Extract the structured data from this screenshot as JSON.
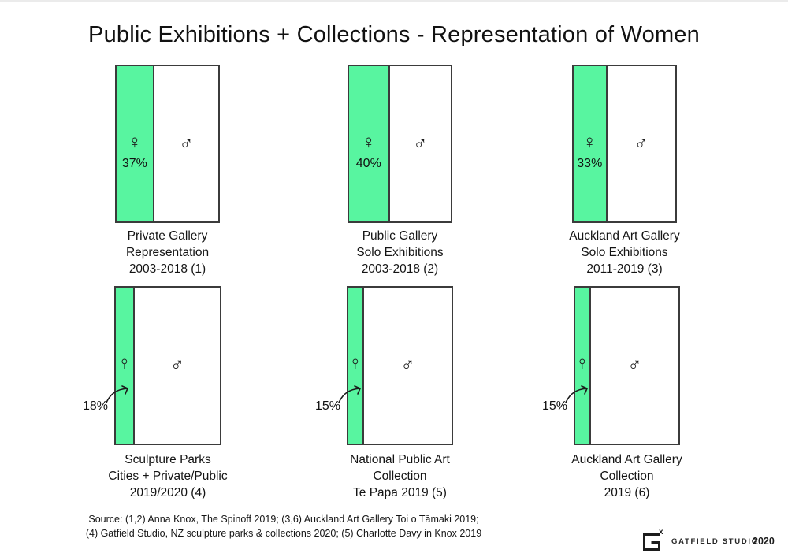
{
  "title": "Public Exhibitions + Collections - Representation of Women",
  "symbols": {
    "female": "♀",
    "male": "♂"
  },
  "panels": [
    {
      "pct_label": "37%",
      "female_pct": 37,
      "caption": [
        "Private Gallery",
        "Representation",
        "2003-2018 (1)"
      ]
    },
    {
      "pct_label": "40%",
      "female_pct": 40,
      "caption": [
        "Public Gallery",
        "Solo Exhibitions",
        "2003-2018 (2)"
      ]
    },
    {
      "pct_label": "33%",
      "female_pct": 33,
      "caption": [
        "Auckland Art Gallery",
        "Solo Exhibitions",
        "2011-2019 (3)"
      ]
    },
    {
      "pct_label": "18%",
      "female_pct": 18,
      "caption": [
        "Sculpture Parks",
        "Cities + Private/Public",
        "2019/2020 (4)"
      ]
    },
    {
      "pct_label": "15%",
      "female_pct": 15,
      "caption": [
        "National Public Art",
        "Collection",
        "Te Papa 2019 (5)"
      ]
    },
    {
      "pct_label": "15%",
      "female_pct": 15,
      "caption": [
        "Auckland Art Gallery",
        "Collection",
        "2019 (6)"
      ]
    }
  ],
  "footer": {
    "source_line1": "Source: (1,2) Anna Knox, The Spinoff 2019; (3,6) Auckland Art Gallery Toi o Tāmaki 2019;",
    "source_line2": "(4) Gatfield Studio, NZ sculpture parks & collections 2020; (5) Charlotte Davy in Knox 2019"
  },
  "logo": {
    "glyph_superscript": "x",
    "studio": "GATFIELD STUDIO",
    "year": "2020"
  },
  "colors": {
    "female_fill": "#58f5a0",
    "box_border": "#3b3b3b",
    "text": "#141414"
  },
  "chart_data": {
    "type": "bar",
    "title": "Public Exhibitions + Collections - Representation of Women",
    "categories": [
      "Private Gallery Representation 2003-2018 (1)",
      "Public Gallery Solo Exhibitions 2003-2018 (2)",
      "Auckland Art Gallery Solo Exhibitions 2011-2019 (3)",
      "Sculpture Parks Cities + Private/Public 2019/2020 (4)",
      "National Public Art Collection Te Papa 2019 (5)",
      "Auckland Art Gallery Collection 2019 (6)"
    ],
    "series": [
      {
        "name": "Women",
        "values": [
          37,
          40,
          33,
          18,
          15,
          15
        ]
      },
      {
        "name": "Men",
        "values": [
          63,
          60,
          67,
          82,
          85,
          85
        ]
      }
    ],
    "unit": "%",
    "xlabel": "",
    "ylabel": "",
    "layout": "six 100%-stacked proportion boxes, 3 columns x 2 rows; green segment = women's share, white = men's",
    "legend_position": "in-chart gender symbols",
    "source": "Source: (1,2) Anna Knox, The Spinoff 2019; (3,6) Auckland Art Gallery Toi o Tāmaki 2019; (4) Gatfield Studio, NZ sculpture parks & collections 2020; (5) Charlotte Davy in Knox 2019"
  }
}
